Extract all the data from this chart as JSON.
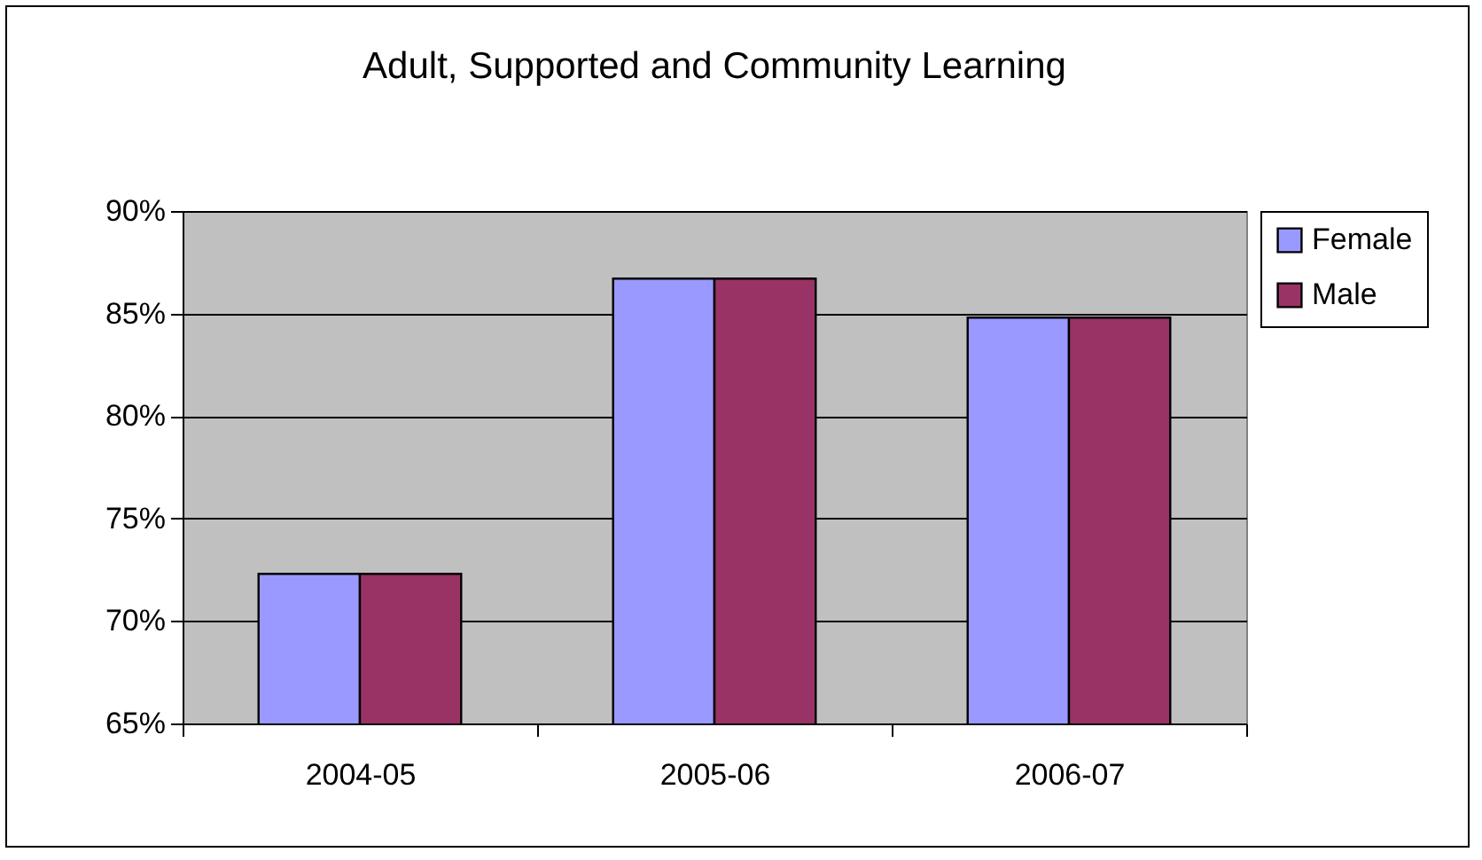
{
  "chart_data": {
    "type": "bar",
    "title": "Adult, Supported and Community Learning",
    "categories": [
      "2004-05",
      "2005-06",
      "2006-07"
    ],
    "series": [
      {
        "name": "Female",
        "color": "#9999ff",
        "values": [
          72.3,
          86.7,
          84.8
        ]
      },
      {
        "name": "Male",
        "color": "#993366",
        "values": [
          72.3,
          86.7,
          84.8
        ]
      }
    ],
    "ylim": [
      65,
      90
    ],
    "yticks": [
      {
        "value": 65,
        "label": "65%"
      },
      {
        "value": 70,
        "label": "70%"
      },
      {
        "value": 75,
        "label": "75%"
      },
      {
        "value": 80,
        "label": "80%"
      },
      {
        "value": 85,
        "label": "85%"
      },
      {
        "value": 90,
        "label": "90%"
      }
    ],
    "grid": "y",
    "legend": "right"
  }
}
